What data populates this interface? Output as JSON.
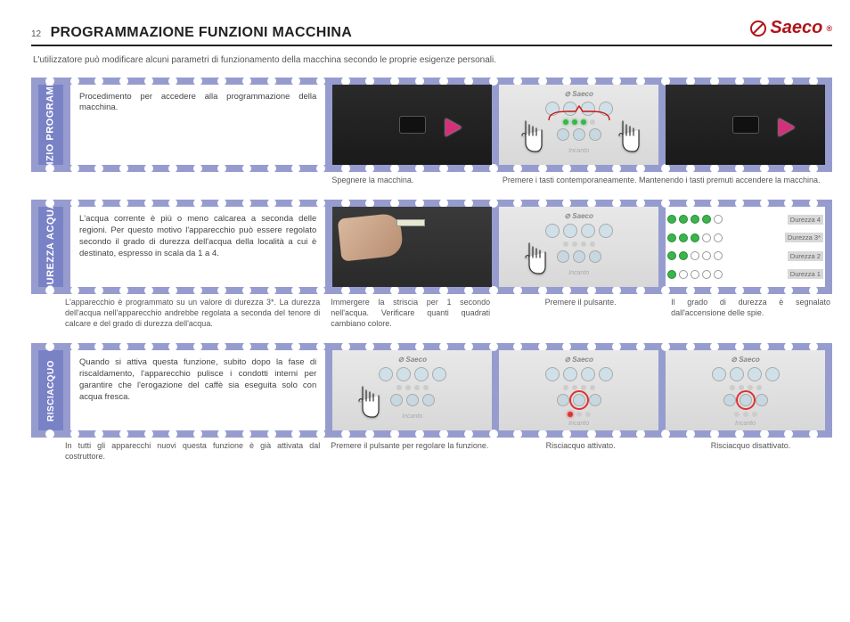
{
  "page_number": "12",
  "title": "PROGRAMMAZIONE FUNZIONI MACCHINA",
  "brand": "Saeco",
  "intro": "L'utilizzatore può modificare alcuni parametri di funzionamento della macchina secondo le proprie esigenze personali.",
  "colors": {
    "strip_bg": "#979ccf",
    "tab_bg": "#7a82c6",
    "brand_red": "#b1151b",
    "arrow_pink": "#d62f7a",
    "led_green": "#3ab54a",
    "led_red": "#d33"
  },
  "section1": {
    "tab": "INIZIO PROGRAMM.",
    "text": "Procedimento per accedere alla programmazione della macchina.",
    "cap2": "Spegnere la macchina.",
    "cap3": "Premere i tasti contemporaneamente. Mantenendo i tasti premuti accendere la macchina."
  },
  "section2": {
    "tab": "DUREZZA ACQUA",
    "text": "L'acqua corrente è più o meno calcarea a seconda delle regioni. Per questo motivo l'apparecchio può essere regolato secondo il grado di durezza dell'acqua della località a cui è destinato, espresso in scala da 1 a 4.",
    "sub": "L'apparecchio è programmato su un valore di durezza 3*. La durezza dell'acqua nell'apparecchio andrebbe regolata a seconda del tenore di calcare e del grado di durezza dell'acqua.",
    "cap2": "Immergere la striscia per 1 secondo nell'acqua. Verificare quanti quadrati cambiano colore.",
    "cap3": "Premere il pulsante.",
    "cap4": "Il grado di durezza è segnalato dall'accensione delle spie.",
    "chart": {
      "rows": [
        {
          "label": "Durezza 4",
          "on": [
            1,
            1,
            1,
            1
          ]
        },
        {
          "label": "Durezza 3*",
          "on": [
            1,
            1,
            1,
            0
          ]
        },
        {
          "label": "Durezza 2",
          "on": [
            1,
            1,
            0,
            0
          ]
        },
        {
          "label": "Durezza 1",
          "on": [
            1,
            0,
            0,
            0
          ]
        }
      ]
    }
  },
  "section3": {
    "tab": "RISCIACQUO",
    "text": "Quando si attiva questa funzione, subito dopo la fase di riscaldamento, l'apparecchio pulisce i condotti interni per garantire che l'erogazione del caffè sia eseguita solo con acqua fresca.",
    "sub": "In tutti gli apparecchi nuovi questa funzione è già attivata dal costruttore.",
    "cap2": "Premere il pulsante per regolare la funzione.",
    "cap3": "Risciacquo attivato.",
    "cap4": "Risciacquo disattivato."
  },
  "panel": {
    "logo": "Saeco",
    "script": "Incanto"
  }
}
